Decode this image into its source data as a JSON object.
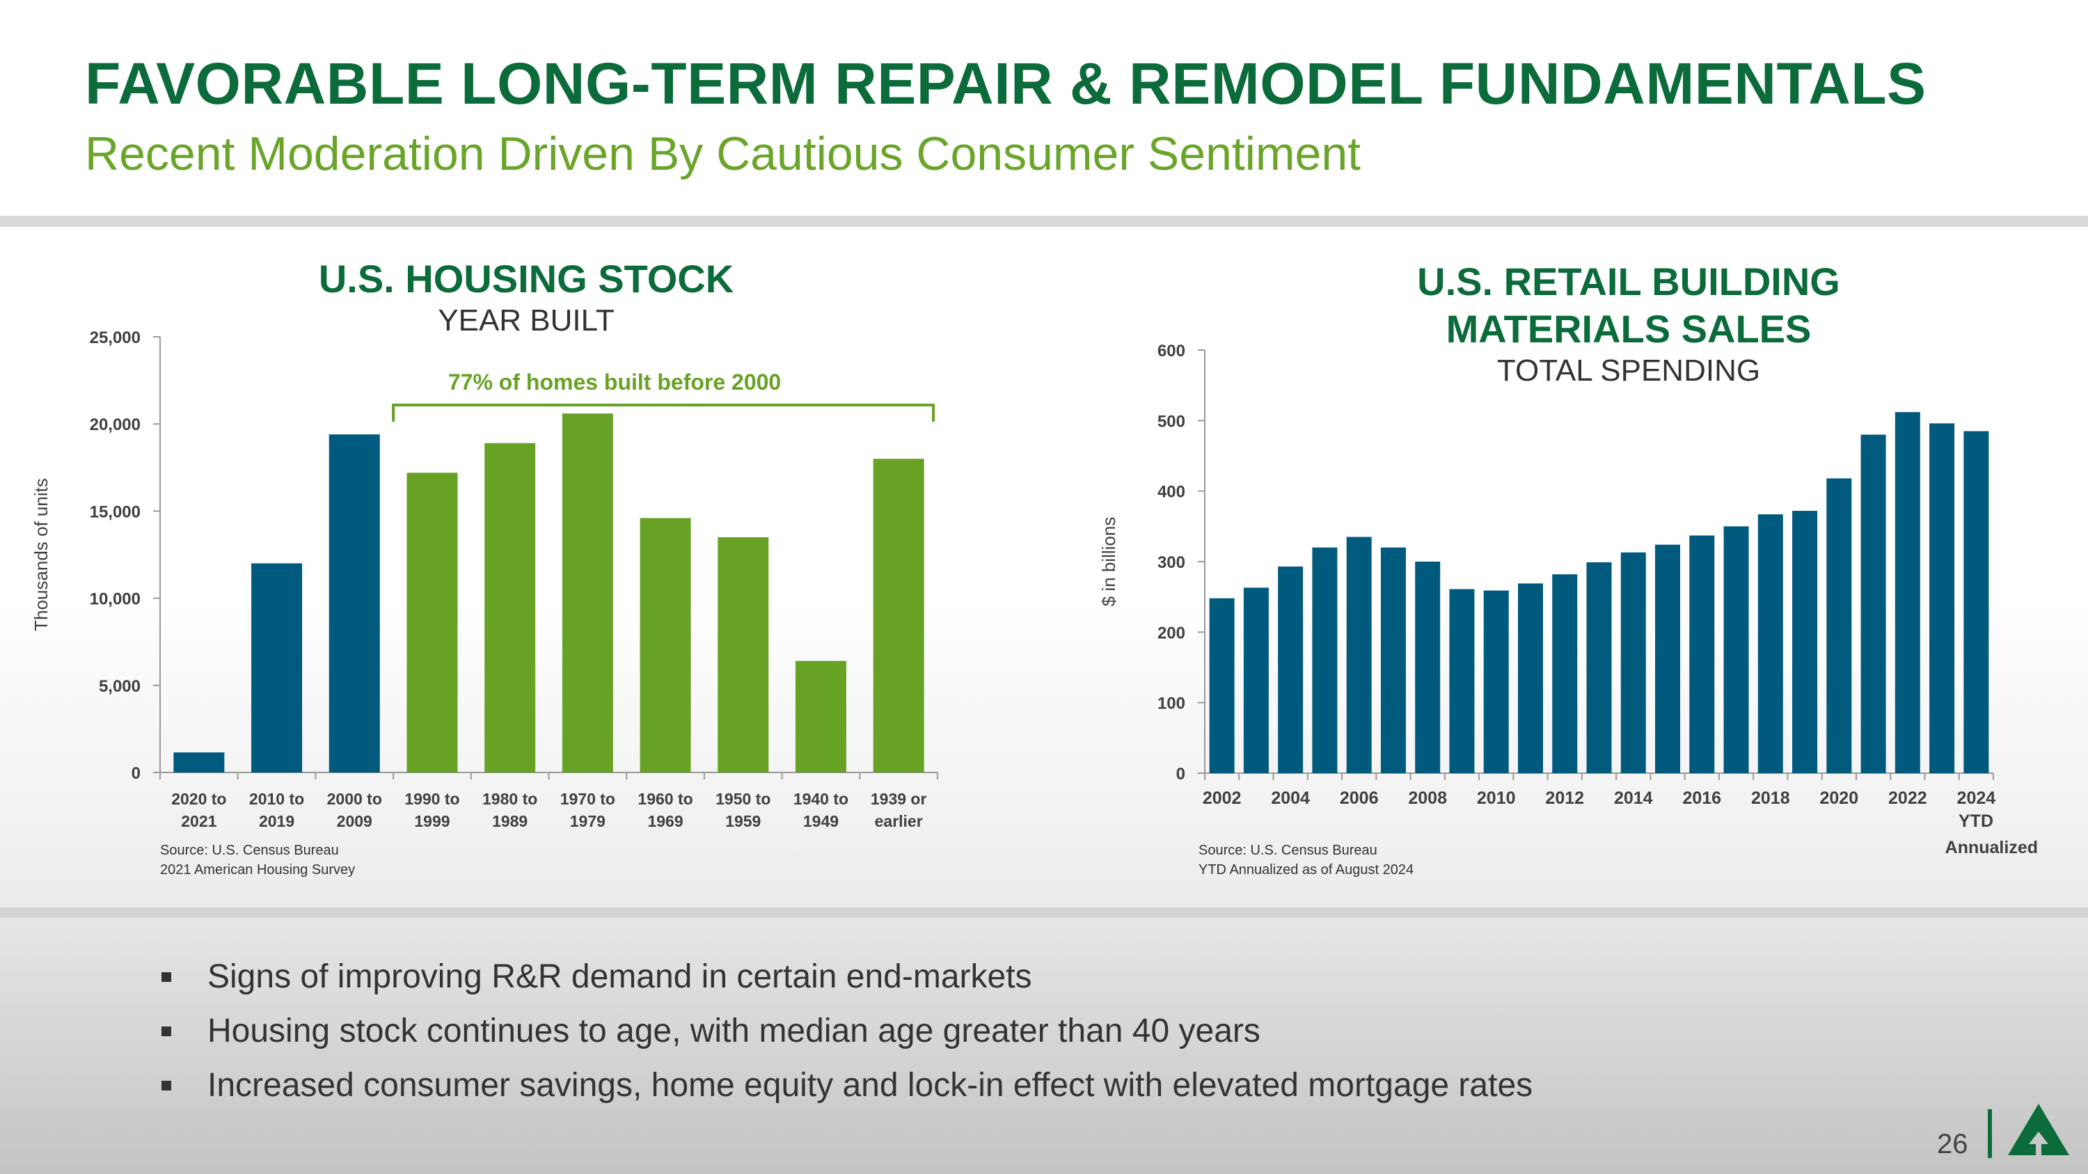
{
  "header": {
    "title": "FAVORABLE LONG-TERM REPAIR & REMODEL FUNDAMENTALS",
    "subtitle": "Recent Moderation Driven By Cautious Consumer Sentiment"
  },
  "chart_data": [
    {
      "type": "bar",
      "title": "U.S. HOUSING STOCK",
      "subtitle": "YEAR BUILT",
      "ylabel": "Thousands of units",
      "ylim": [
        0,
        25000
      ],
      "yticks": [
        "0",
        "5,000",
        "10,000",
        "15,000",
        "20,000",
        "25,000"
      ],
      "ytick_values": [
        0,
        5000,
        10000,
        15000,
        20000,
        25000
      ],
      "categories": [
        [
          "2020 to",
          "2021"
        ],
        [
          "2010 to",
          "2019"
        ],
        [
          "2000 to",
          "2009"
        ],
        [
          "1990 to",
          "1999"
        ],
        [
          "1980 to",
          "1989"
        ],
        [
          "1970 to",
          "1979"
        ],
        [
          "1960 to",
          "1969"
        ],
        [
          "1950 to",
          "1959"
        ],
        [
          "1940 to",
          "1949"
        ],
        [
          "1939 or",
          "earlier"
        ]
      ],
      "values": [
        1150,
        12000,
        19400,
        17200,
        18900,
        20600,
        14600,
        13500,
        6400,
        18000
      ],
      "colors": [
        "#005a7d",
        "#005a7d",
        "#005a7d",
        "#68a225",
        "#68a225",
        "#68a225",
        "#68a225",
        "#68a225",
        "#68a225",
        "#68a225"
      ],
      "annotation": {
        "text": "77% of homes built before 2000",
        "from_index": 3,
        "to_index": 9
      },
      "source": [
        "Source: U.S. Census Bureau",
        "2021 American Housing Survey"
      ]
    },
    {
      "type": "bar",
      "title": [
        "U.S. RETAIL BUILDING",
        "MATERIALS SALES"
      ],
      "subtitle": "TOTAL SPENDING",
      "ylabel": "$ in billions",
      "ylim": [
        0,
        600
      ],
      "yticks": [
        "0",
        "100",
        "200",
        "300",
        "400",
        "500",
        "600"
      ],
      "ytick_values": [
        0,
        100,
        200,
        300,
        400,
        500,
        600
      ],
      "x": [
        2002,
        2003,
        2004,
        2005,
        2006,
        2007,
        2008,
        2009,
        2010,
        2011,
        2012,
        2013,
        2014,
        2015,
        2016,
        2017,
        2018,
        2019,
        2020,
        2021,
        2022,
        2023,
        2024
      ],
      "xtick_labels": [
        "2002",
        "2004",
        "2006",
        "2008",
        "2010",
        "2012",
        "2014",
        "2016",
        "2018",
        "2020",
        "2022",
        "2024"
      ],
      "last_label_extra": [
        "YTD",
        "Annualized"
      ],
      "values": [
        248,
        263,
        293,
        320,
        335,
        320,
        300,
        261,
        259,
        269,
        282,
        299,
        313,
        324,
        337,
        350,
        367,
        372,
        418,
        480,
        512,
        496,
        485
      ],
      "color": "#005a7d",
      "source": [
        "Source: U.S. Census Bureau",
        "YTD Annualized as of August 2024"
      ]
    }
  ],
  "bullets": [
    "Signs of improving R&R demand in certain end-markets",
    "Housing stock continues to age, with median age greater than 40 years",
    "Increased consumer savings, home equity and lock-in effect with elevated mortgage rates"
  ],
  "footer": {
    "page": "26"
  }
}
